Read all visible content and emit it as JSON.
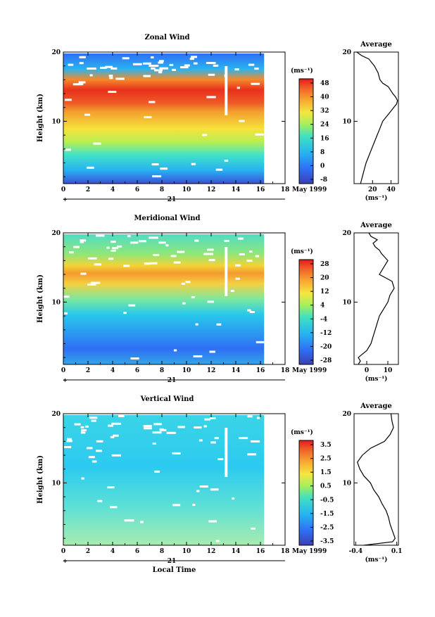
{
  "chart_data": [
    {
      "type": "heatmap",
      "title": "Zonal Wind",
      "ylabel": "Height (km)",
      "xticks": [
        "0",
        "2",
        "4",
        "6",
        "8",
        "10",
        "12",
        "14",
        "16",
        "18"
      ],
      "yticks": [
        "10",
        "20"
      ],
      "xlim": [
        0,
        18
      ],
      "ylim": [
        1,
        20
      ],
      "data_xmax": 16.3,
      "date_label": "21",
      "month_label": "May 1999",
      "colorbar": {
        "unit": "(ms⁻¹)",
        "ticks": [
          "48",
          "40",
          "32",
          "24",
          "16",
          "8",
          "0",
          "-8"
        ]
      },
      "profile": {
        "title": "Average",
        "xlabel": "(ms⁻¹)",
        "xticks": [
          "20",
          "40"
        ],
        "xtick_values": [
          20,
          40
        ],
        "xlim": [
          0,
          48
        ],
        "yticks": [
          "10",
          "20"
        ],
        "x": [
          7,
          9,
          11,
          13,
          16,
          19,
          22,
          25,
          28,
          31,
          34,
          37,
          40,
          43,
          46,
          47,
          45,
          42,
          37,
          31,
          28,
          27,
          26,
          22,
          16,
          8,
          3
        ],
        "y": [
          1,
          2,
          3,
          4,
          5,
          6,
          7,
          8,
          9,
          10,
          10.5,
          11,
          11.5,
          12,
          12.5,
          13,
          13.5,
          14,
          15,
          15.5,
          16,
          16.5,
          17,
          18,
          19,
          19.5,
          20
        ]
      }
    },
    {
      "type": "heatmap",
      "title": "Meridional Wind",
      "ylabel": "Height (km)",
      "xticks": [
        "0",
        "2",
        "4",
        "6",
        "8",
        "10",
        "12",
        "14",
        "16",
        "18"
      ],
      "yticks": [
        "10",
        "20"
      ],
      "xlim": [
        0,
        18
      ],
      "ylim": [
        1,
        20
      ],
      "data_xmax": 16.3,
      "date_label": "21",
      "month_label": "May 1999",
      "colorbar": {
        "unit": "(ms⁻¹)",
        "ticks": [
          "28",
          "20",
          "12",
          "4",
          "-4",
          "-12",
          "-20",
          "-28"
        ]
      },
      "profile": {
        "title": "Average",
        "xlabel": "(ms⁻¹)",
        "xticks": [
          "0",
          "10"
        ],
        "xtick_values": [
          0,
          10
        ],
        "xlim": [
          -6,
          15
        ],
        "yticks": [
          "10",
          "20"
        ],
        "x": [
          -4,
          -3,
          -4,
          -2,
          0,
          2,
          3,
          4,
          5,
          6,
          8,
          10,
          11,
          13,
          12,
          9,
          6,
          8,
          10,
          7,
          6,
          4,
          3,
          5,
          2,
          1
        ],
        "y": [
          1,
          1.5,
          2,
          2.5,
          3,
          4,
          5,
          6,
          7,
          8,
          9,
          10,
          11,
          12,
          13,
          13.5,
          14,
          15,
          16,
          17,
          17.5,
          18,
          18.5,
          19,
          19.5,
          20
        ]
      }
    },
    {
      "type": "heatmap",
      "title": "Vertical Wind",
      "ylabel": "Height (km)",
      "xlabel": "Local Time",
      "xticks": [
        "0",
        "2",
        "4",
        "6",
        "8",
        "10",
        "12",
        "14",
        "16",
        "18"
      ],
      "yticks": [
        "10",
        "20"
      ],
      "xlim": [
        0,
        18
      ],
      "ylim": [
        1,
        20
      ],
      "data_xmax": 16.3,
      "date_label": "21",
      "month_label": "May 1999",
      "colorbar": {
        "unit": "(ms⁻¹)",
        "ticks": [
          "3.5",
          "2.5",
          "1.5",
          "0.5",
          "-0.5",
          "-1.5",
          "-2.5",
          "-3.5"
        ]
      },
      "profile": {
        "title": "Average",
        "xlabel": "(ms⁻¹)",
        "xticks": [
          "-0.4",
          "0.1"
        ],
        "xtick_values": [
          -0.4,
          0.1
        ],
        "xlim": [
          -0.42,
          0.12
        ],
        "yticks": [
          "10",
          "20"
        ],
        "x": [
          -0.3,
          0.05,
          0.08,
          0.05,
          0.02,
          0.0,
          -0.03,
          -0.08,
          -0.12,
          -0.18,
          -0.22,
          -0.3,
          -0.35,
          -0.38,
          -0.32,
          -0.22,
          -0.05,
          0.02,
          0.06,
          0.04,
          0.03
        ],
        "y": [
          1,
          1.5,
          2,
          3,
          4,
          5,
          6,
          7,
          8,
          9,
          10,
          11,
          12,
          13,
          14,
          15,
          16,
          17,
          18,
          19,
          20
        ]
      }
    }
  ]
}
